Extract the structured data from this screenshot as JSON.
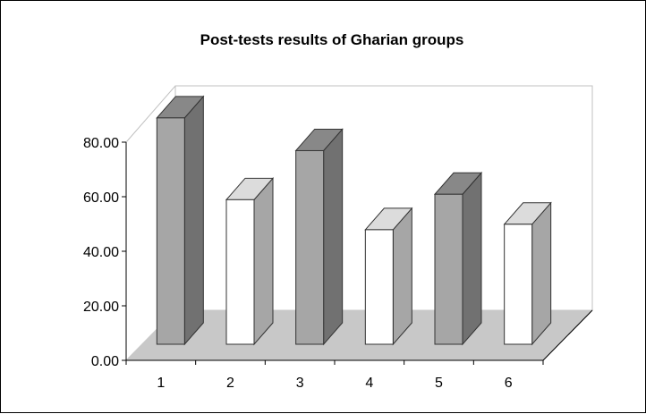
{
  "chart_data": {
    "type": "bar",
    "title": "Post-tests results of Gharian groups",
    "xlabel": "",
    "ylabel": "",
    "categories": [
      "1",
      "2",
      "3",
      "4",
      "5",
      "6"
    ],
    "values": [
      83,
      53,
      71,
      42,
      55,
      44
    ],
    "bar_colors": [
      "#a6a6a6",
      "#ffffff",
      "#a6a6a6",
      "#ffffff",
      "#a6a6a6",
      "#ffffff"
    ],
    "y_ticks": [
      "0.00",
      "20.00",
      "40.00",
      "60.00",
      "80.00"
    ],
    "ylim": [
      0,
      80
    ],
    "grid": false,
    "legend": "none",
    "style": "3d-column",
    "colors": {
      "floor": "#c8c8c8",
      "wall_outline": "#c0c0c0",
      "outline": "#333333"
    }
  }
}
